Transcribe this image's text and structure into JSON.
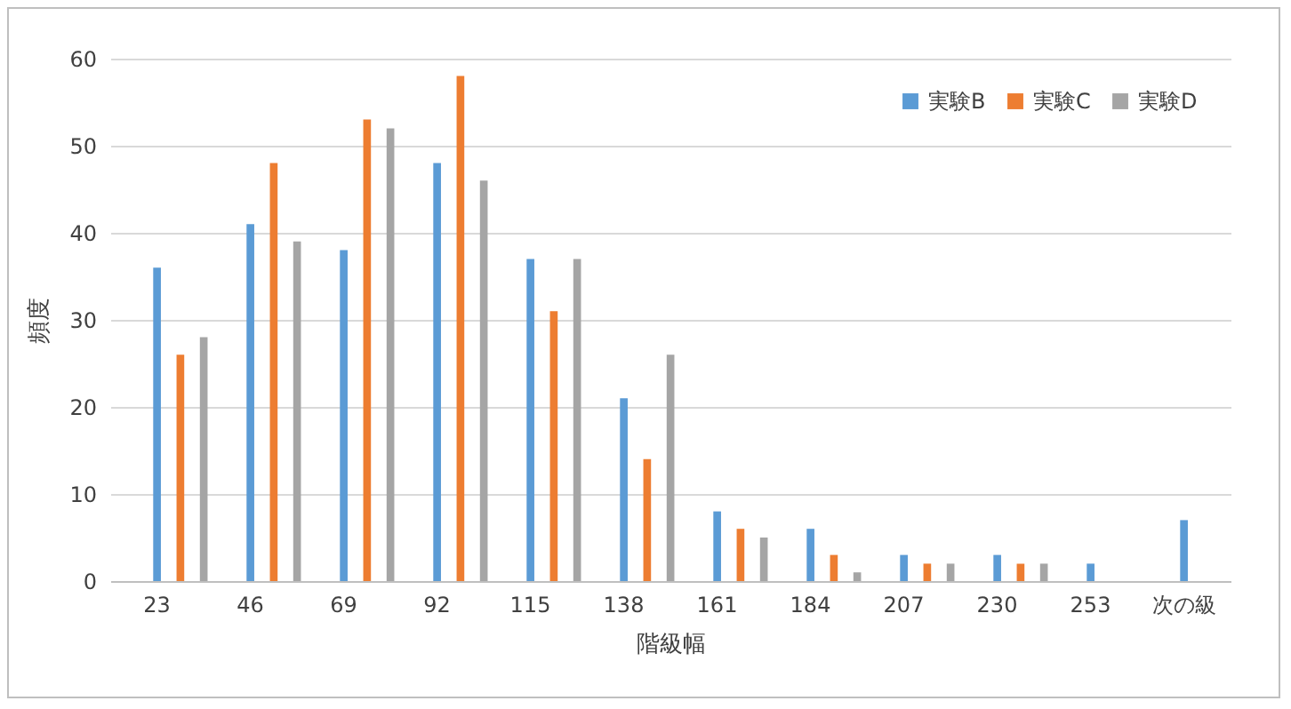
{
  "chart_data": {
    "type": "bar",
    "xlabel": "階級幅",
    "ylabel": "頻度",
    "categories": [
      "23",
      "46",
      "69",
      "92",
      "115",
      "138",
      "161",
      "184",
      "207",
      "230",
      "253",
      "次の級"
    ],
    "series": [
      {
        "name": "実験B",
        "color": "#5b9bd5",
        "values": [
          36,
          41,
          38,
          48,
          37,
          21,
          8,
          6,
          3,
          3,
          2,
          7
        ]
      },
      {
        "name": "実験C",
        "color": "#ed7d31",
        "values": [
          26,
          48,
          53,
          58,
          31,
          14,
          6,
          3,
          2,
          2,
          0,
          0
        ]
      },
      {
        "name": "実験D",
        "color": "#a5a5a5",
        "values": [
          28,
          39,
          52,
          46,
          37,
          26,
          5,
          1,
          2,
          2,
          0,
          0
        ]
      }
    ],
    "ylim": [
      0,
      60
    ],
    "yticks": [
      0,
      10,
      20,
      30,
      40,
      50,
      60
    ],
    "grid": "y",
    "legend": "top right"
  }
}
